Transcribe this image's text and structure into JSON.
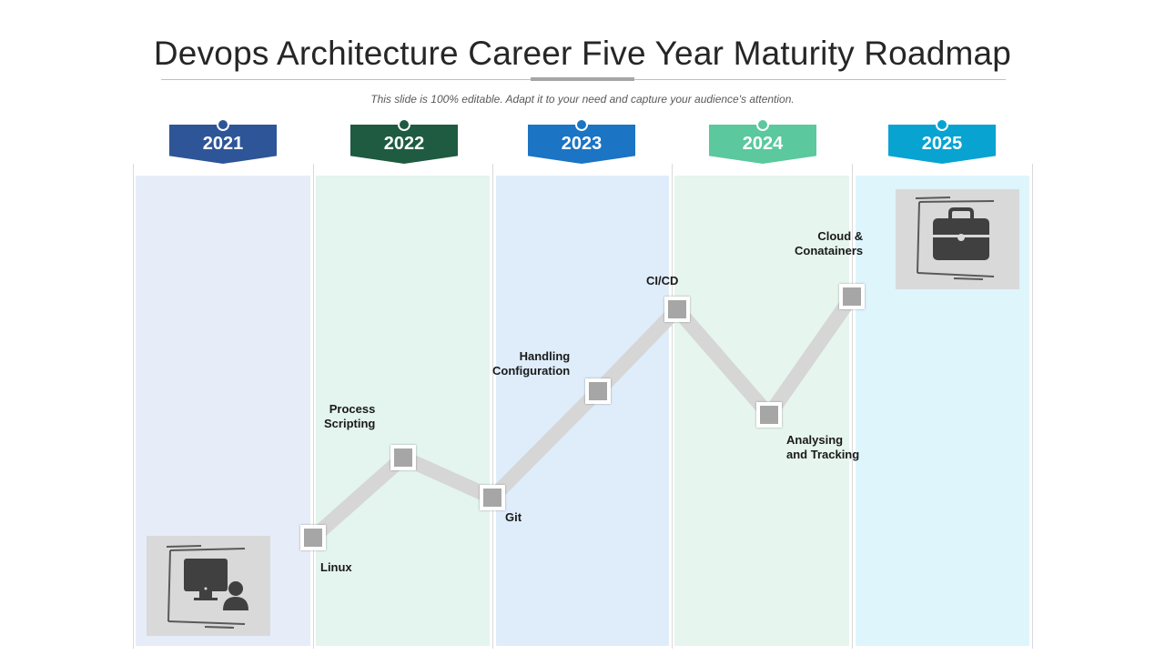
{
  "header": {
    "title": "Devops Architecture Career Five Year Maturity Roadmap",
    "subtitle": "This slide is 100% editable. Adapt it to your need and capture your audience's attention."
  },
  "years": [
    {
      "label": "2021",
      "color": "#2e5597"
    },
    {
      "label": "2022",
      "color": "#1e5b40"
    },
    {
      "label": "2023",
      "color": "#1b74c4"
    },
    {
      "label": "2024",
      "color": "#5bc89e"
    },
    {
      "label": "2025",
      "color": "#08a3d1"
    }
  ],
  "column_colors": [
    "#e6edf8",
    "#e4f4ee",
    "#dfedfa",
    "#e6f5ee",
    "#def5fc"
  ],
  "milestones": [
    {
      "label": "Linux"
    },
    {
      "label": "Process\nScripting"
    },
    {
      "label": "Git"
    },
    {
      "label": "Handling\nConfiguration"
    },
    {
      "label": "CI/CD"
    },
    {
      "label": "Analysing\nand Tracking"
    },
    {
      "label": "Cloud &\nConatainers"
    }
  ],
  "icons": {
    "start": "computer-user-icon",
    "end": "briefcase-icon"
  }
}
